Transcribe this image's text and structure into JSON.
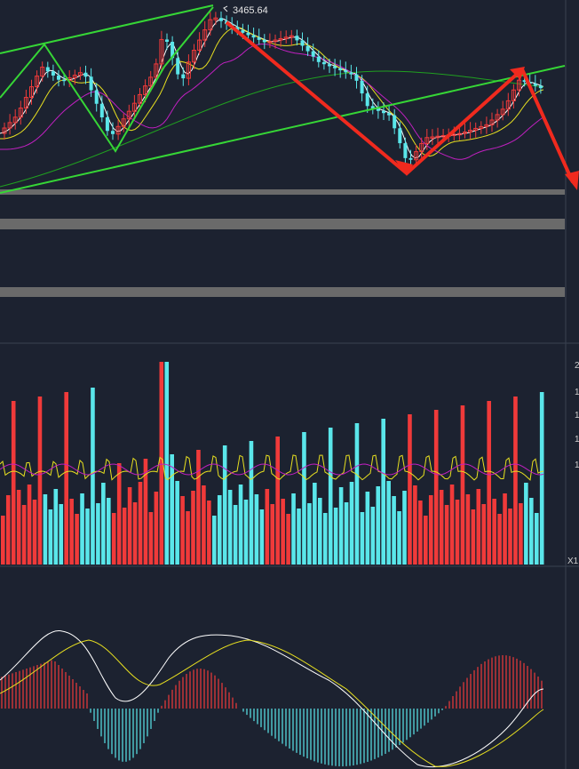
{
  "price_panel": {
    "high_label": "3465.64"
  },
  "volume_panel": {
    "axis_ticks": [
      "2",
      "1",
      "1",
      "1",
      "1"
    ],
    "corner_label": "X1"
  },
  "colors": {
    "background": "#1c2230",
    "up": "#f03a3a",
    "down": "#5ae6ea",
    "trend_green": "#36d636",
    "arrow_red": "#f02a1e",
    "ma_white": "#ffffff",
    "ma_yellow": "#e8e020",
    "ma_magenta": "#c020c0",
    "ma_green": "#20a020",
    "gray_band": "#6a6a6a"
  },
  "chart_data": [
    {
      "type": "candlestick",
      "title": "",
      "annotations": [
        "3465.64"
      ],
      "overlays": [
        "MA5 (white)",
        "MA10 (yellow)",
        "MA20 (magenta)",
        "MA60 (green)",
        "trend channel (green)",
        "zigzag arrows (red)"
      ]
    },
    {
      "type": "bar",
      "title": "",
      "description": "volume bars with moving average lines",
      "axis_ticks": [
        "2",
        "1",
        "1",
        "1",
        "1"
      ]
    },
    {
      "type": "bar",
      "title": "",
      "description": "MACD histogram with DIF (white) and DEA (yellow) lines"
    }
  ]
}
